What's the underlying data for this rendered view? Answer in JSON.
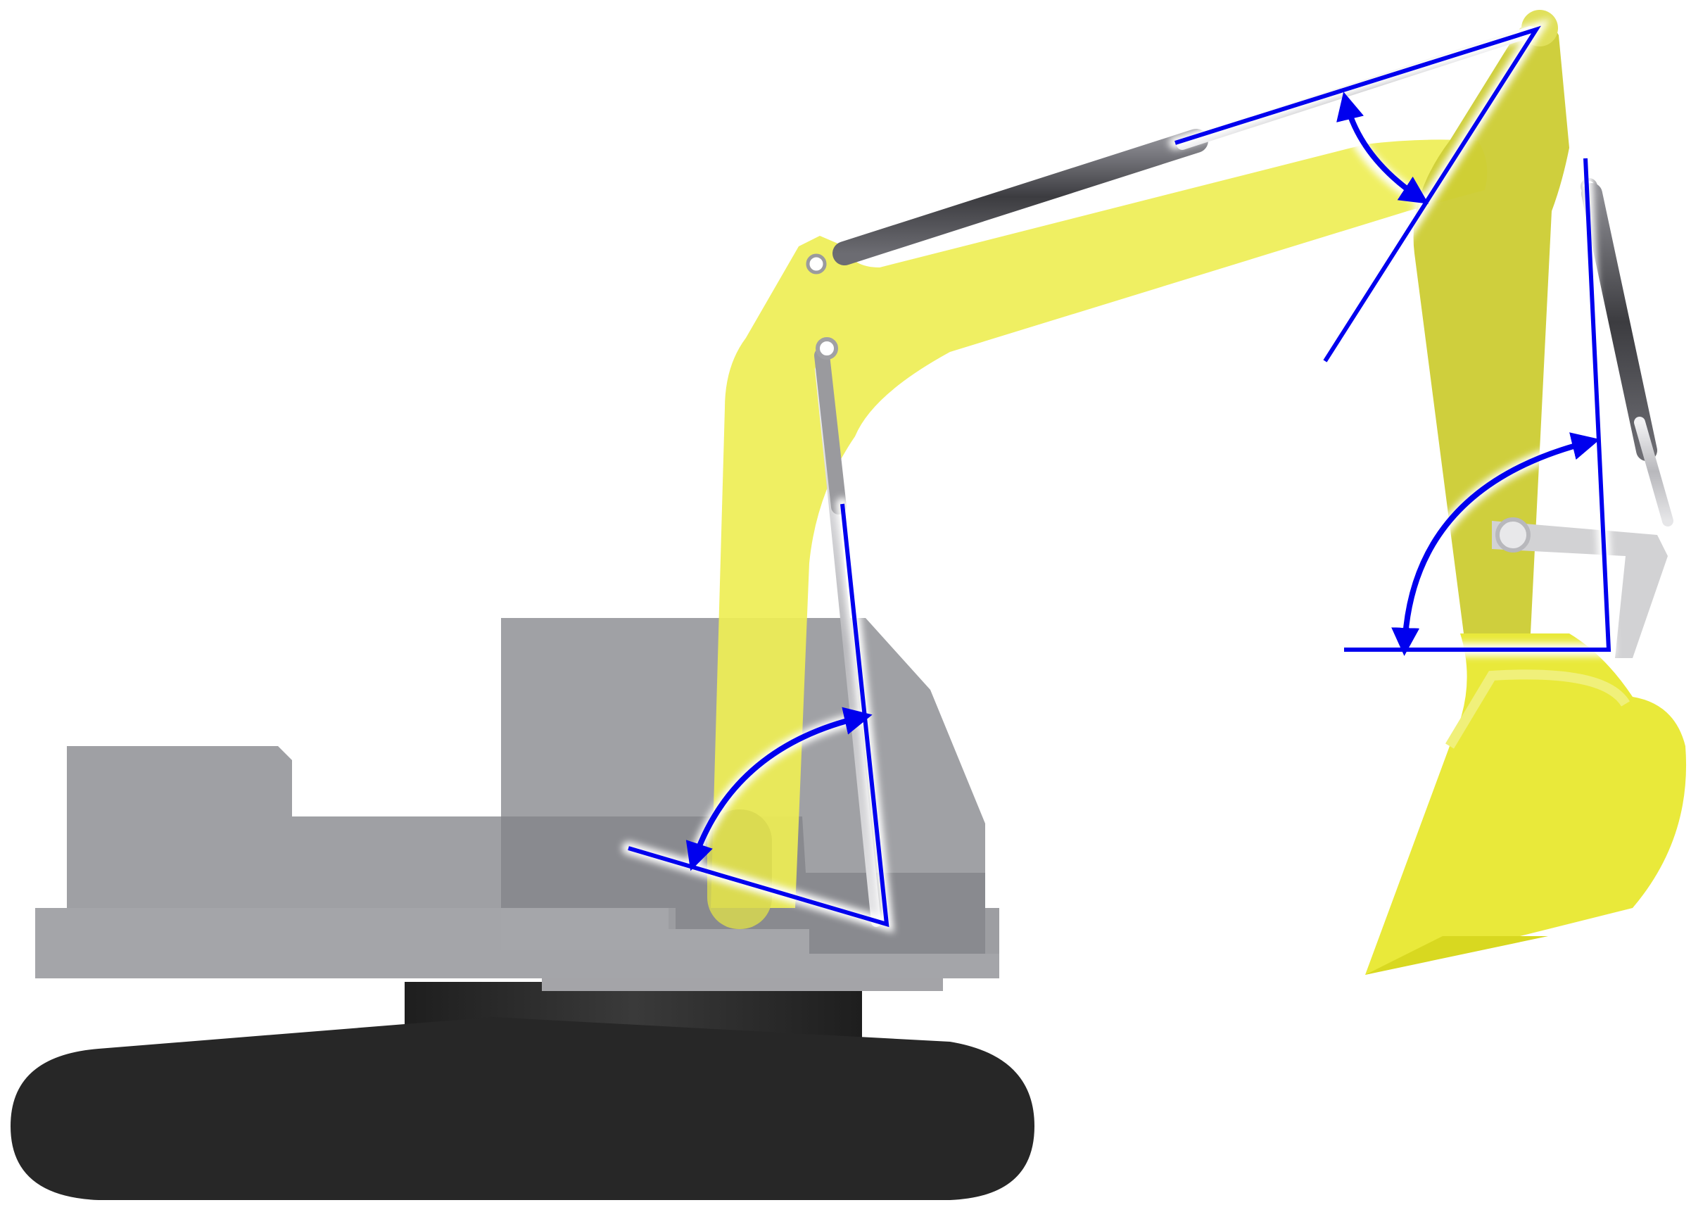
{
  "figure": {
    "subject": "excavator",
    "colors": {
      "background": "#ffffff",
      "arm_yellow": "#eeee55",
      "arm_yellow_shadow": "#cccc33",
      "bucket_yellow": "#e9e93a",
      "body_gray": "#9d9ea2",
      "body_gray_dark": "#8a8b90",
      "track_black": "#272727",
      "cylinder_dark": "#4a4a4e",
      "rod_silver": "#d0d0d2",
      "angle_line_blue": "#0000ee",
      "angle_glow": "#ffffff"
    },
    "angle_markers": [
      {
        "name": "boom-angle",
        "joint": "boom-foot"
      },
      {
        "name": "arm-angle",
        "joint": "boom-tip"
      },
      {
        "name": "bucket-angle",
        "joint": "arm-tip"
      }
    ]
  }
}
